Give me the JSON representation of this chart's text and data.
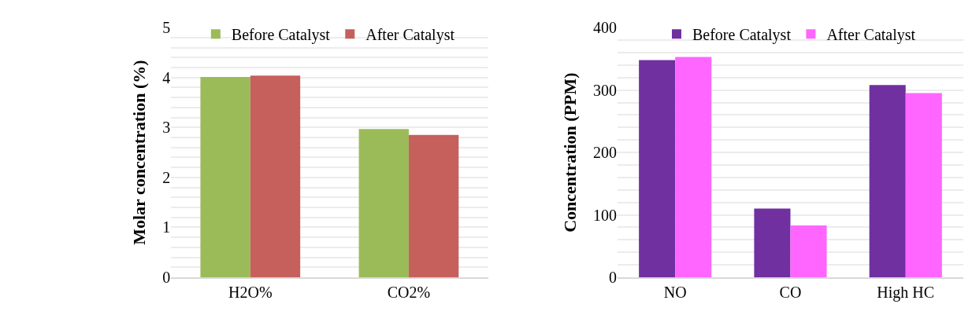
{
  "chart_data": [
    {
      "type": "bar",
      "ylabel": "Molar concentration (%)",
      "categories": [
        "H2O%",
        "CO2%"
      ],
      "series": [
        {
          "name": "Before Catalyst",
          "color": "#9bbb59",
          "values": [
            4.01,
            2.97
          ]
        },
        {
          "name": "After Catalyst",
          "color": "#c6605c",
          "values": [
            4.04,
            2.85
          ]
        }
      ],
      "ylim": [
        0,
        5
      ],
      "yticks": [
        0,
        {
          "value": 0.2,
          "label": null
        },
        {
          "value": 0.4,
          "label": null
        },
        {
          "value": 0.6,
          "label": null
        },
        {
          "value": 0.8,
          "label": null
        },
        1,
        {
          "value": 1.2,
          "label": null
        },
        {
          "value": 1.4,
          "label": null
        },
        {
          "value": 1.6,
          "label": null
        },
        {
          "value": 1.8,
          "label": null
        },
        2,
        {
          "value": 2.2,
          "label": null
        },
        {
          "value": 2.4,
          "label": null
        },
        {
          "value": 2.6,
          "label": null
        },
        {
          "value": 2.8,
          "label": null
        },
        3,
        {
          "value": 3.2,
          "label": null
        },
        {
          "value": 3.4,
          "label": null
        },
        {
          "value": 3.6,
          "label": null
        },
        {
          "value": 3.8,
          "label": null
        },
        4,
        {
          "value": 4.2,
          "label": null
        },
        {
          "value": 4.4,
          "label": null
        },
        {
          "value": 4.6,
          "label": null
        },
        {
          "value": 4.8,
          "label": null
        },
        5
      ],
      "grid": "y",
      "legend": "top"
    },
    {
      "type": "bar",
      "ylabel": "Concentration (PPM)",
      "categories": [
        "NO",
        "CO",
        "High HC"
      ],
      "series": [
        {
          "name": "Before Catalyst",
          "color": "#7030a0",
          "values": [
            348,
            110,
            308
          ]
        },
        {
          "name": "After Catalyst",
          "color": "#ff66ff",
          "values": [
            353,
            83,
            295
          ]
        }
      ],
      "ylim": [
        0,
        400
      ],
      "yticks": [
        0,
        {
          "value": 20,
          "label": null
        },
        {
          "value": 40,
          "label": null
        },
        {
          "value": 60,
          "label": null
        },
        {
          "value": 80,
          "label": null
        },
        100,
        {
          "value": 120,
          "label": null
        },
        {
          "value": 140,
          "label": null
        },
        {
          "value": 160,
          "label": null
        },
        {
          "value": 180,
          "label": null
        },
        200,
        {
          "value": 220,
          "label": null
        },
        {
          "value": 240,
          "label": null
        },
        {
          "value": 260,
          "label": null
        },
        {
          "value": 280,
          "label": null
        },
        300,
        {
          "value": 320,
          "label": null
        },
        {
          "value": 340,
          "label": null
        },
        {
          "value": 360,
          "label": null
        },
        {
          "value": 380,
          "label": null
        },
        400
      ],
      "grid": "y",
      "legend": "top"
    }
  ]
}
